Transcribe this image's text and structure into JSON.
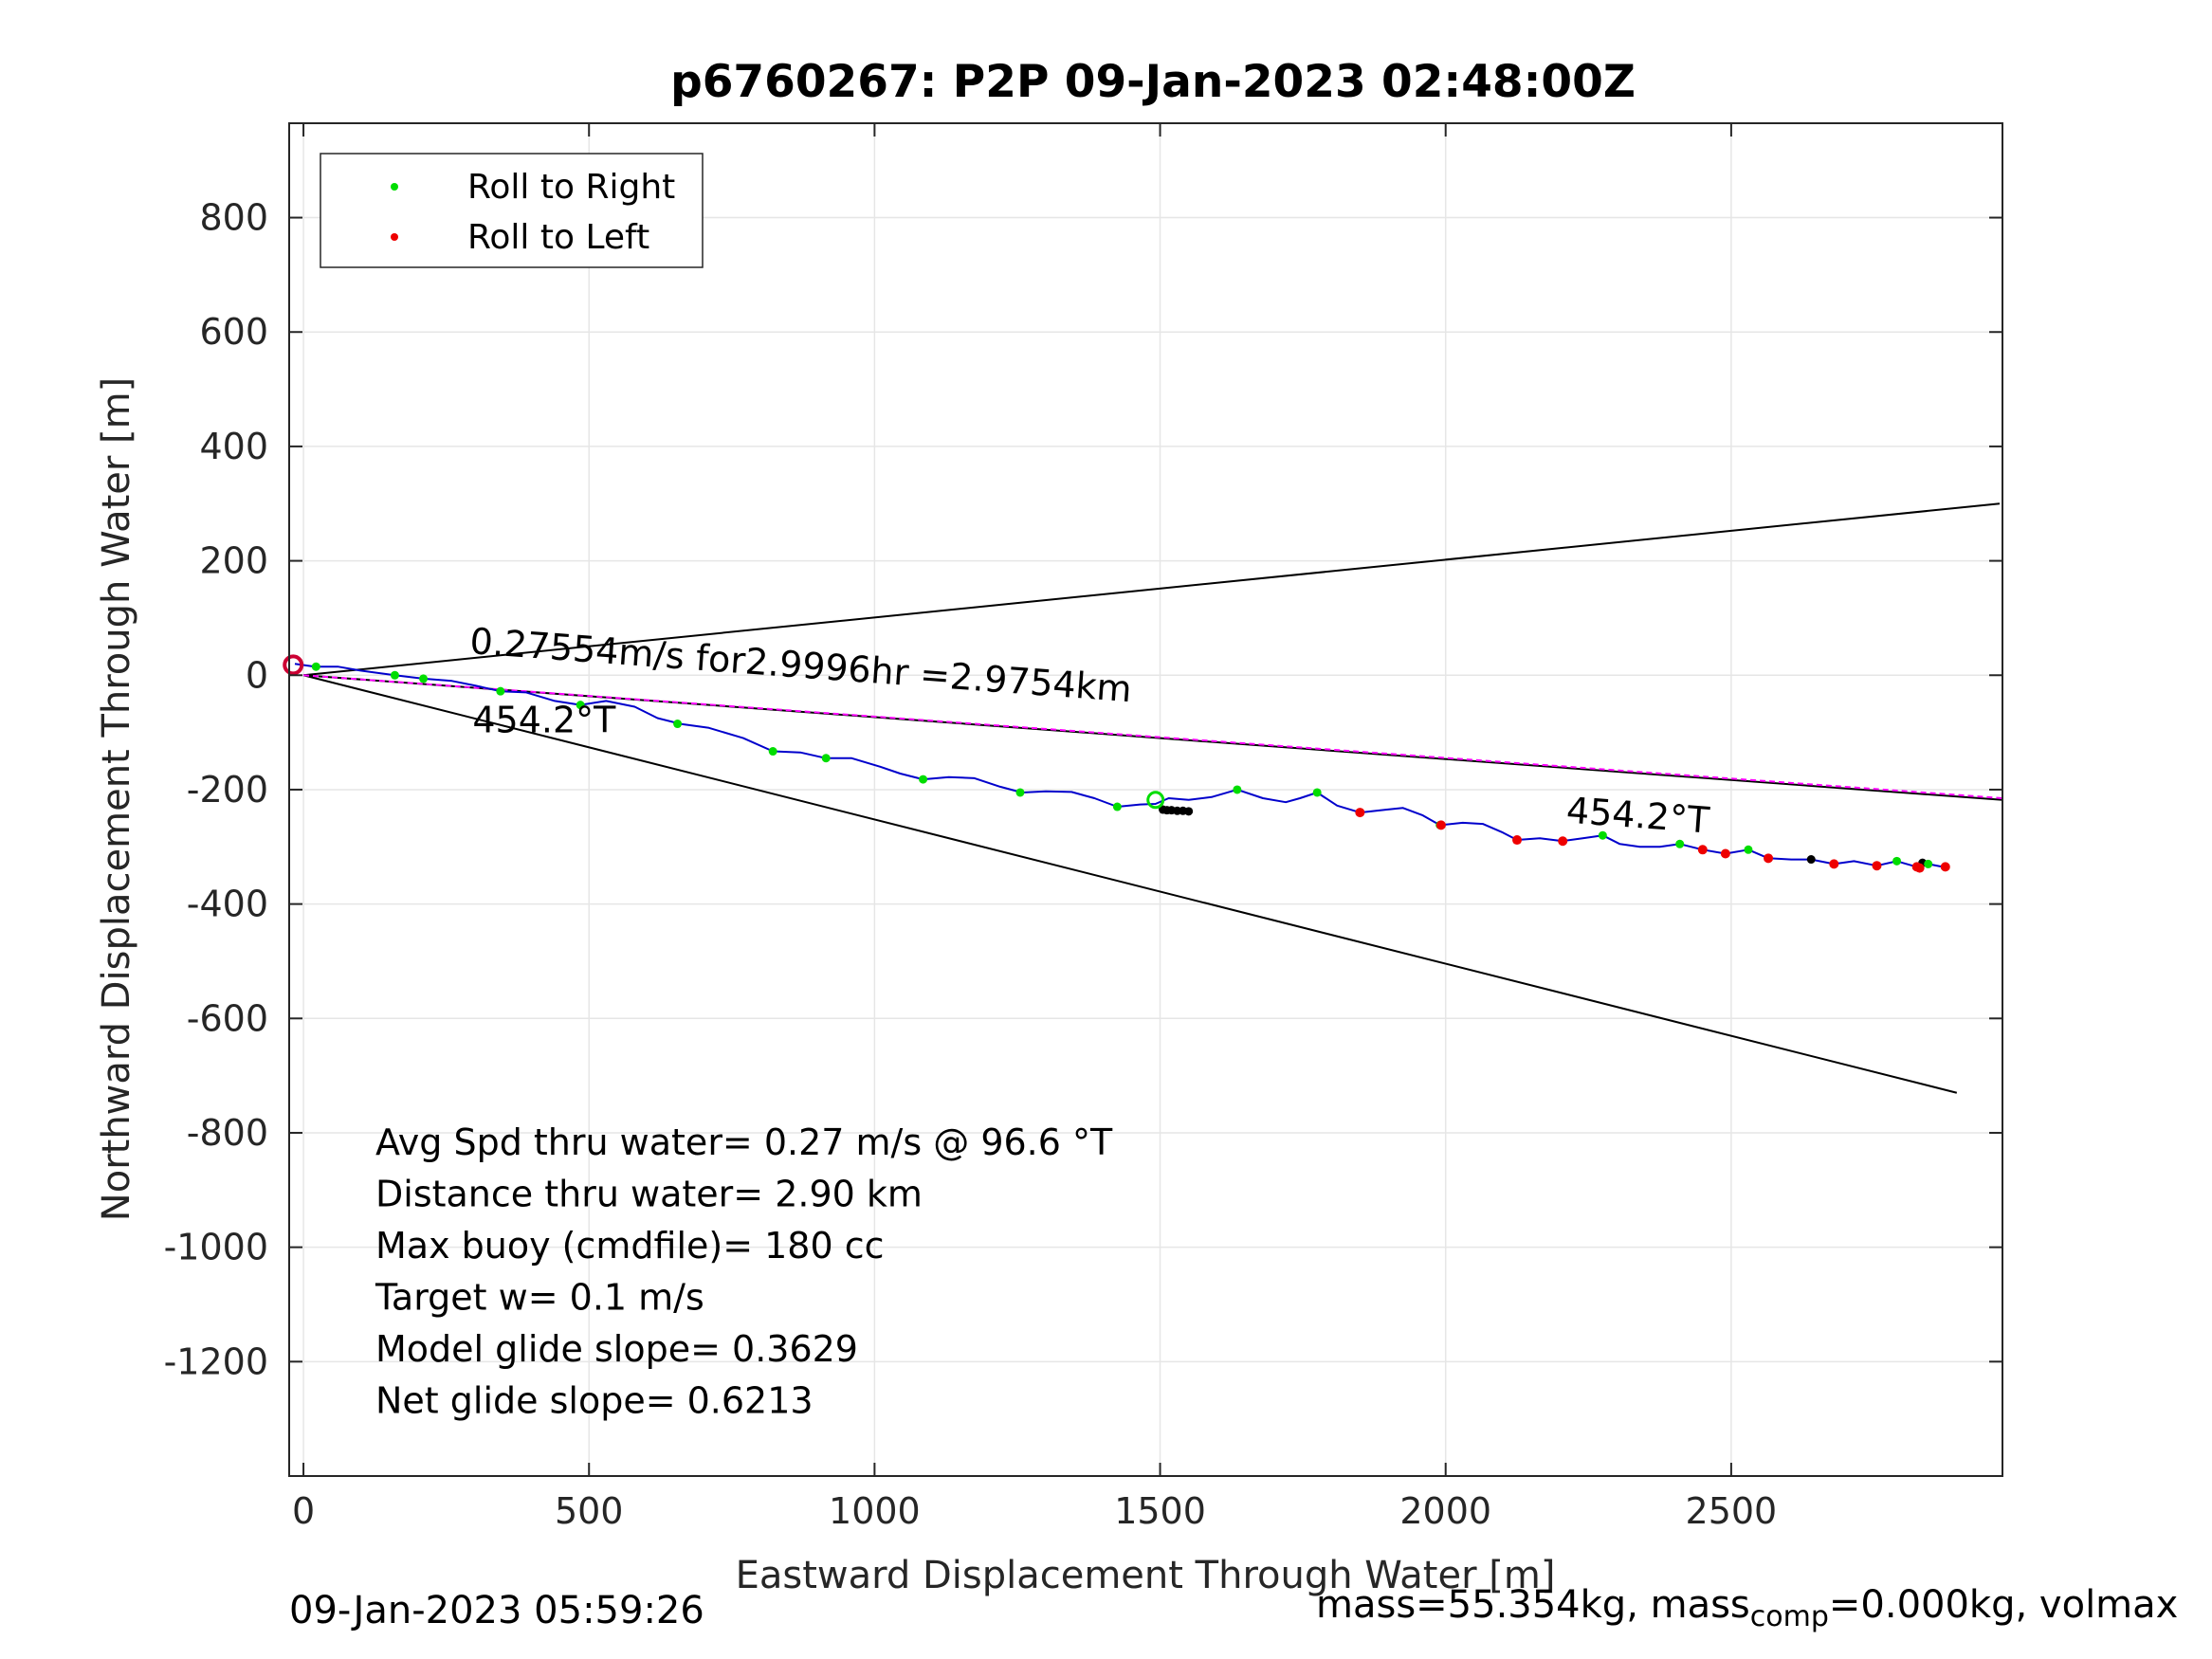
{
  "chart_data": {
    "type": "line",
    "title": "p6760267: P2P 09-Jan-2023 02:48:00Z",
    "xlabel": "Eastward Displacement Through Water [m]",
    "ylabel": "Northward Displacement Through Water [m]",
    "xlim": [
      -25,
      2975
    ],
    "ylim": [
      -1400,
      965
    ],
    "xticks": [
      0,
      500,
      1000,
      1500,
      2000,
      2500
    ],
    "yticks": [
      800,
      600,
      400,
      200,
      0,
      -200,
      -400,
      -600,
      -800,
      -1000,
      -1200
    ],
    "grid": true,
    "legend": {
      "position": "top-left",
      "entries": [
        {
          "label": "Roll to Right",
          "color": "#00dd00"
        },
        {
          "label": "Roll to Left",
          "color": "#ee0000"
        }
      ]
    },
    "colors": {
      "track": "#0000cc",
      "bearing": "#ff00ff",
      "cone": "#000000",
      "right_roll": "#00dd00",
      "left_roll": "#ee0000",
      "start_marker": "#cc0033",
      "grid": "#e6e6e6"
    },
    "lines": {
      "cone_upper": [
        [
          0,
          0
        ],
        [
          2970,
          300
        ]
      ],
      "cone_lower": [
        [
          0,
          0
        ],
        [
          2895,
          -730
        ]
      ],
      "bearing_black": [
        [
          0,
          0
        ],
        [
          2975,
          -218
        ]
      ],
      "bearing_magenta": [
        [
          0,
          0
        ],
        [
          2975,
          -215
        ]
      ]
    },
    "track": [
      [
        -15,
        20
      ],
      [
        20,
        15
      ],
      [
        60,
        15
      ],
      [
        100,
        8
      ],
      [
        160,
        0
      ],
      [
        210,
        -6
      ],
      [
        260,
        -10
      ],
      [
        300,
        -18
      ],
      [
        345,
        -28
      ],
      [
        390,
        -30
      ],
      [
        440,
        -45
      ],
      [
        485,
        -52
      ],
      [
        530,
        -45
      ],
      [
        580,
        -55
      ],
      [
        620,
        -75
      ],
      [
        660,
        -85
      ],
      [
        710,
        -92
      ],
      [
        770,
        -110
      ],
      [
        822,
        -133
      ],
      [
        870,
        -135
      ],
      [
        915,
        -145
      ],
      [
        960,
        -145
      ],
      [
        1010,
        -160
      ],
      [
        1045,
        -172
      ],
      [
        1085,
        -182
      ],
      [
        1130,
        -178
      ],
      [
        1175,
        -180
      ],
      [
        1220,
        -195
      ],
      [
        1258,
        -205
      ],
      [
        1300,
        -203
      ],
      [
        1345,
        -204
      ],
      [
        1385,
        -215
      ],
      [
        1425,
        -230
      ],
      [
        1465,
        -226
      ],
      [
        1492,
        -225
      ],
      [
        1515,
        -215
      ],
      [
        1550,
        -218
      ],
      [
        1590,
        -213
      ],
      [
        1635,
        -200
      ],
      [
        1680,
        -215
      ],
      [
        1720,
        -222
      ],
      [
        1745,
        -215
      ],
      [
        1775,
        -205
      ],
      [
        1810,
        -228
      ],
      [
        1850,
        -240
      ],
      [
        1895,
        -235
      ],
      [
        1925,
        -232
      ],
      [
        1960,
        -245
      ],
      [
        1990,
        -262
      ],
      [
        2030,
        -258
      ],
      [
        2065,
        -260
      ],
      [
        2100,
        -275
      ],
      [
        2125,
        -288
      ],
      [
        2165,
        -285
      ],
      [
        2205,
        -290
      ],
      [
        2240,
        -285
      ],
      [
        2275,
        -280
      ],
      [
        2305,
        -295
      ],
      [
        2340,
        -300
      ],
      [
        2375,
        -300
      ],
      [
        2410,
        -295
      ],
      [
        2450,
        -305
      ],
      [
        2490,
        -312
      ],
      [
        2530,
        -305
      ],
      [
        2565,
        -320
      ],
      [
        2605,
        -322
      ],
      [
        2640,
        -322
      ],
      [
        2680,
        -330
      ],
      [
        2715,
        -325
      ],
      [
        2755,
        -333
      ],
      [
        2790,
        -325
      ],
      [
        2825,
        -335
      ],
      [
        2845,
        -330
      ],
      [
        2870,
        -335
      ],
      [
        2880,
        -337
      ]
    ],
    "green_points": [
      [
        22,
        15
      ],
      [
        160,
        0
      ],
      [
        210,
        -6
      ],
      [
        345,
        -28
      ],
      [
        485,
        -52
      ],
      [
        655,
        -85
      ],
      [
        822,
        -133
      ],
      [
        915,
        -145
      ],
      [
        1085,
        -182
      ],
      [
        1255,
        -205
      ],
      [
        1425,
        -230
      ],
      [
        1635,
        -200
      ],
      [
        1775,
        -205
      ],
      [
        1990,
        -262
      ],
      [
        2275,
        -280
      ],
      [
        2410,
        -295
      ],
      [
        2530,
        -305
      ],
      [
        2790,
        -325
      ],
      [
        2845,
        -330
      ]
    ],
    "red_points": [
      [
        1850,
        -240
      ],
      [
        1992,
        -262
      ],
      [
        2125,
        -288
      ],
      [
        2205,
        -290
      ],
      [
        2450,
        -305
      ],
      [
        2490,
        -312
      ],
      [
        2565,
        -320
      ],
      [
        2680,
        -330
      ],
      [
        2755,
        -333
      ],
      [
        2825,
        -335
      ],
      [
        2830,
        -337
      ],
      [
        2875,
        -335
      ]
    ],
    "black_points": [
      [
        1505,
        -235
      ],
      [
        1512,
        -236
      ],
      [
        1520,
        -236
      ],
      [
        1530,
        -237
      ],
      [
        1540,
        -237
      ],
      [
        1550,
        -238
      ],
      [
        2640,
        -322
      ],
      [
        2835,
        -328
      ]
    ],
    "start_marker": [
      -18,
      18
    ],
    "dive_marker": [
      1492,
      -218
    ],
    "annotations": {
      "speed_line": "0.27554m/s for2.9996hr =2.9754km",
      "heading_upper": "454.2°T",
      "heading_right": "454.2°T"
    },
    "stats": [
      "Avg Spd thru water=  0.27 m/s @  96.6 °T",
      "Distance thru water=  2.90 km",
      "Max buoy (cmdfile)= 180 cc",
      "Target w= 0.1 m/s",
      "Model glide slope= 0.3629",
      "Net glide slope= 0.6213"
    ]
  },
  "footer": {
    "date": "09-Jan-2023 05:59:26",
    "mass_prefix": "mass=55.354kg, mass",
    "mass_sub": "comp",
    "mass_suffix": "=0.000kg, volmax"
  }
}
